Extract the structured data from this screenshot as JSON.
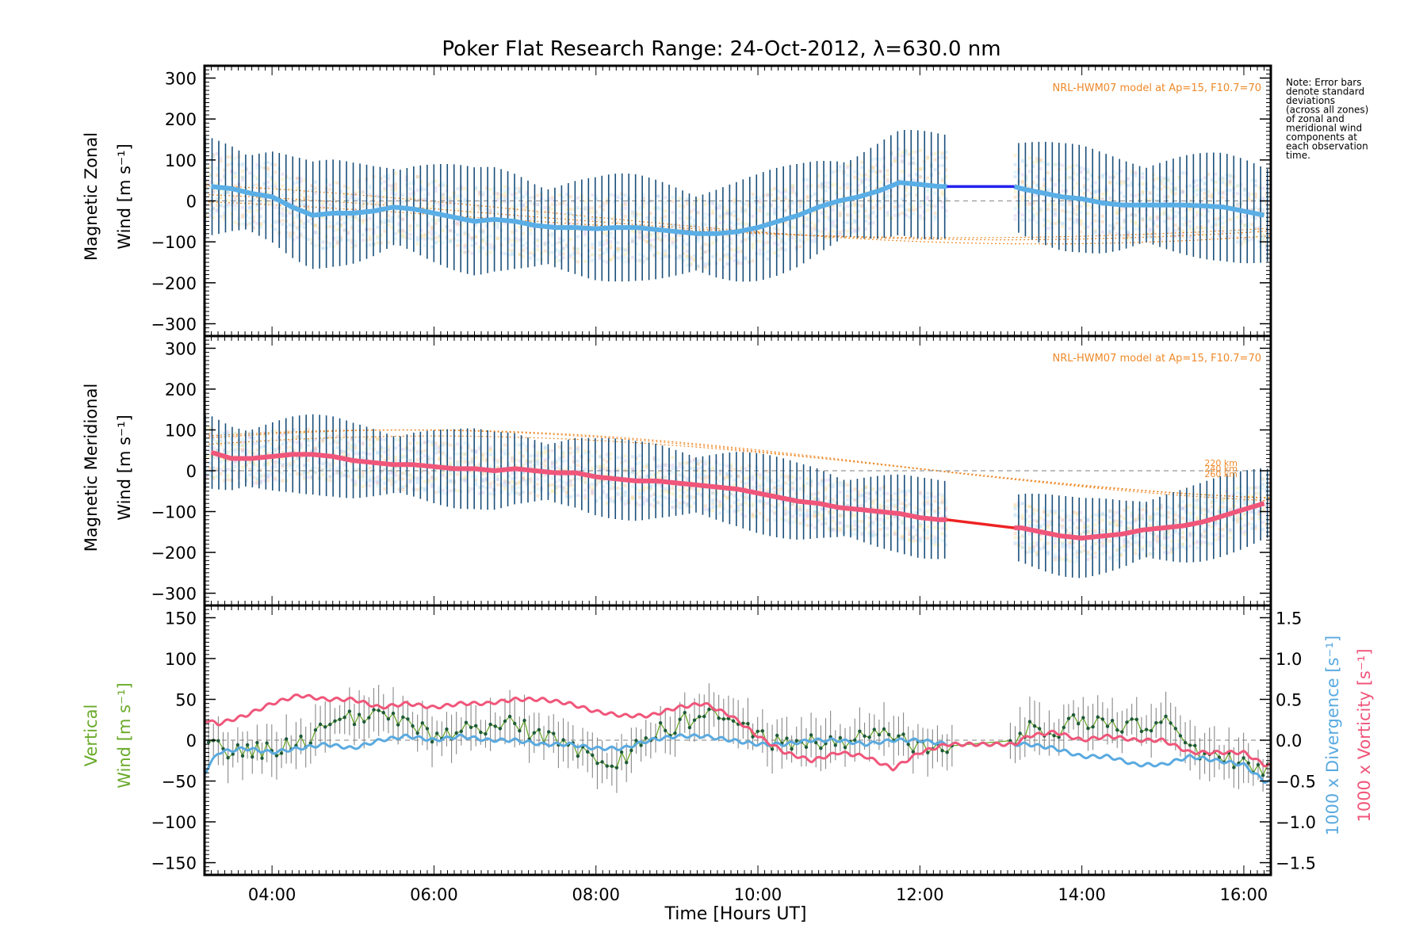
{
  "chart_data": [
    {
      "type": "line",
      "title": "Poker Flat Research Range: 24-Oct-2012, λ=630.0 nm",
      "ylabel": [
        "Magnetic Zonal",
        "Wind [m s⁻¹]"
      ],
      "ylim": [
        -330,
        330
      ],
      "yticks": [
        300,
        200,
        100,
        0,
        -100,
        -200,
        -300
      ],
      "xlim": [
        "03:10",
        "16:20"
      ],
      "annotation": "NRL-HWM07 model at Ap=15, F10.7=70",
      "colors": {
        "mean": "#5aaee6",
        "gap": "#2222ee",
        "errbar": "#1a4f7a",
        "model": "#ee8a2a"
      },
      "series": [
        {
          "x": [
            "03:15",
            "03:30",
            "03:45",
            "04:00",
            "04:15",
            "04:30",
            "04:45",
            "05:00",
            "05:15",
            "05:30",
            "05:45",
            "06:00",
            "06:15",
            "06:30",
            "06:45",
            "07:00",
            "07:15",
            "07:30",
            "07:45",
            "08:00",
            "08:15",
            "08:30",
            "08:45",
            "09:00",
            "09:15",
            "09:30",
            "09:45",
            "10:00",
            "10:15",
            "10:30",
            "10:45",
            "11:00",
            "11:15",
            "11:30",
            "11:45",
            "12:00",
            "12:15",
            "12:20",
            "13:10",
            "13:15",
            "13:30",
            "13:45",
            "14:00",
            "14:15",
            "14:30",
            "14:45",
            "15:00",
            "15:15",
            "15:30",
            "15:45",
            "16:00",
            "16:15"
          ],
          "values": [
            35,
            30,
            18,
            10,
            -15,
            -35,
            -30,
            -30,
            -25,
            -15,
            -20,
            -30,
            -40,
            -50,
            -45,
            -50,
            -60,
            -65,
            -65,
            -68,
            -65,
            -65,
            -70,
            -75,
            -80,
            -80,
            -75,
            -65,
            -50,
            -35,
            -15,
            0,
            10,
            25,
            45,
            40,
            35,
            35,
            35,
            30,
            20,
            10,
            5,
            -5,
            -10,
            -10,
            -10,
            -10,
            -12,
            -15,
            -25,
            -35
          ]
        }
      ],
      "errbar_sd_approx": 120
    },
    {
      "type": "line",
      "ylabel": [
        "Magnetic Meridional",
        "Wind [m s⁻¹]"
      ],
      "ylim": [
        -330,
        330
      ],
      "yticks": [
        300,
        200,
        100,
        0,
        -100,
        -200,
        -300
      ],
      "annotation": "NRL-HWM07 model at Ap=15, F10.7=70",
      "model_labels": [
        "220 km",
        "240 km",
        "260 km"
      ],
      "colors": {
        "mean": "#f0567a",
        "gap": "#ee2222",
        "errbar": "#1a4f7a",
        "model": "#ee8a2a"
      },
      "series": [
        {
          "x": [
            "03:15",
            "03:30",
            "03:45",
            "04:00",
            "04:15",
            "04:30",
            "04:45",
            "05:00",
            "05:15",
            "05:30",
            "05:45",
            "06:00",
            "06:15",
            "06:30",
            "06:45",
            "07:00",
            "07:15",
            "07:30",
            "07:45",
            "08:00",
            "08:15",
            "08:30",
            "08:45",
            "09:00",
            "09:15",
            "09:30",
            "09:45",
            "10:00",
            "10:15",
            "10:30",
            "10:45",
            "11:00",
            "11:15",
            "11:30",
            "11:45",
            "12:00",
            "12:15",
            "12:20",
            "13:10",
            "13:15",
            "13:30",
            "13:45",
            "14:00",
            "14:15",
            "14:30",
            "14:45",
            "15:00",
            "15:15",
            "15:30",
            "15:45",
            "16:00",
            "16:15"
          ],
          "values": [
            45,
            30,
            30,
            35,
            40,
            40,
            35,
            25,
            20,
            15,
            15,
            10,
            5,
            5,
            0,
            5,
            0,
            -5,
            -5,
            -15,
            -20,
            -25,
            -25,
            -30,
            -35,
            -40,
            -45,
            -55,
            -65,
            -75,
            -80,
            -90,
            -95,
            -100,
            -105,
            -115,
            -120,
            -120,
            -140,
            -140,
            -150,
            -160,
            -165,
            -160,
            -155,
            -145,
            -140,
            -135,
            -125,
            -110,
            -95,
            -80
          ]
        }
      ],
      "errbar_sd_approx": 90
    },
    {
      "type": "line",
      "ylabel_left": [
        "Vertical",
        "Wind [m s⁻¹]"
      ],
      "ylabel_right_1": "1000 x Divergence [s⁻¹]",
      "ylabel_right_2": "1000 x Vorticity [s⁻¹]",
      "xlabel": "Time [Hours UT]",
      "ylim": [
        -165,
        165
      ],
      "yticks": [
        150,
        100,
        50,
        0,
        -50,
        -100,
        -150
      ],
      "ylim_right": [
        -1.65,
        1.65
      ],
      "yticks_right": [
        "1.5",
        "1.0",
        "0.5",
        "0.0",
        "−0.5",
        "−1.0",
        "−1.5"
      ],
      "xticks": [
        "04:00",
        "06:00",
        "08:00",
        "10:00",
        "12:00",
        "14:00",
        "16:00"
      ],
      "colors": {
        "vertical": "#6aaa2a",
        "divergence": "#5aaae0",
        "vorticity": "#f0567a",
        "errbar": "#888888"
      },
      "series": [
        {
          "name": "Vertical",
          "x": [
            "03:20",
            "03:40",
            "04:00",
            "04:20",
            "04:40",
            "05:00",
            "05:20",
            "05:40",
            "06:00",
            "06:20",
            "06:40",
            "07:00",
            "07:20",
            "07:40",
            "08:00",
            "08:10",
            "08:20",
            "08:40",
            "09:00",
            "09:20",
            "09:40",
            "10:00",
            "10:20",
            "10:40",
            "11:00",
            "11:20",
            "11:40",
            "12:00",
            "12:20",
            "13:10",
            "13:20",
            "13:40",
            "14:00",
            "14:20",
            "14:40",
            "15:00",
            "15:20",
            "15:40",
            "16:00",
            "16:15"
          ],
          "values": [
            -10,
            -15,
            -10,
            -5,
            20,
            25,
            30,
            20,
            5,
            10,
            15,
            20,
            5,
            -5,
            -30,
            -45,
            -20,
            5,
            20,
            30,
            25,
            5,
            -5,
            0,
            -5,
            10,
            0,
            -5,
            -5,
            -5,
            20,
            10,
            25,
            20,
            15,
            25,
            -10,
            -20,
            -25,
            -35
          ]
        },
        {
          "name": "1000 x Divergence",
          "x": [
            "03:10",
            "03:20",
            "03:40",
            "04:00",
            "04:20",
            "04:40",
            "05:00",
            "05:20",
            "05:40",
            "06:00",
            "06:20",
            "06:40",
            "07:00",
            "07:20",
            "07:40",
            "08:00",
            "08:20",
            "08:40",
            "09:00",
            "09:20",
            "09:40",
            "10:00",
            "10:20",
            "10:40",
            "11:00",
            "11:20",
            "11:40",
            "12:00",
            "12:20",
            "13:10",
            "13:20",
            "13:40",
            "14:00",
            "14:20",
            "14:40",
            "15:00",
            "15:20",
            "15:40",
            "16:00",
            "16:15"
          ],
          "values": [
            -0.4,
            -0.15,
            -0.1,
            -0.15,
            -0.1,
            -0.05,
            -0.1,
            0.0,
            0.05,
            0.0,
            0.05,
            0.0,
            0.0,
            -0.05,
            -0.05,
            -0.1,
            -0.1,
            0.0,
            0.05,
            0.05,
            0.0,
            -0.05,
            -0.05,
            0.0,
            0.0,
            -0.05,
            0.0,
            0.0,
            -0.05,
            -0.05,
            -0.05,
            -0.1,
            -0.2,
            -0.2,
            -0.3,
            -0.3,
            -0.2,
            -0.25,
            -0.3,
            -0.5
          ]
        },
        {
          "name": "1000 x Vorticity",
          "x": [
            "03:10",
            "03:20",
            "03:40",
            "04:00",
            "04:20",
            "04:40",
            "05:00",
            "05:20",
            "05:40",
            "06:00",
            "06:20",
            "06:40",
            "07:00",
            "07:20",
            "07:40",
            "08:00",
            "08:20",
            "08:40",
            "09:00",
            "09:20",
            "09:40",
            "10:00",
            "10:20",
            "10:40",
            "11:00",
            "11:20",
            "11:40",
            "12:00",
            "12:20",
            "13:10",
            "13:20",
            "13:40",
            "14:00",
            "14:20",
            "14:40",
            "15:00",
            "15:20",
            "15:40",
            "16:00",
            "16:15"
          ],
          "values": [
            0.25,
            0.2,
            0.3,
            0.45,
            0.55,
            0.5,
            0.5,
            0.4,
            0.45,
            0.4,
            0.45,
            0.45,
            0.5,
            0.5,
            0.45,
            0.35,
            0.3,
            0.3,
            0.4,
            0.45,
            0.3,
            0.05,
            -0.15,
            -0.25,
            -0.15,
            -0.2,
            -0.35,
            -0.15,
            -0.05,
            -0.05,
            0.05,
            0.1,
            0.0,
            0.05,
            0.0,
            0.0,
            -0.15,
            -0.15,
            -0.15,
            -0.3
          ]
        }
      ]
    }
  ],
  "side_note": [
    "Note: Error bars",
    "denote standard",
    "deviations",
    "(across all zones)",
    "of zonal and",
    "meridional wind",
    "components at",
    "each observation",
    "time."
  ]
}
